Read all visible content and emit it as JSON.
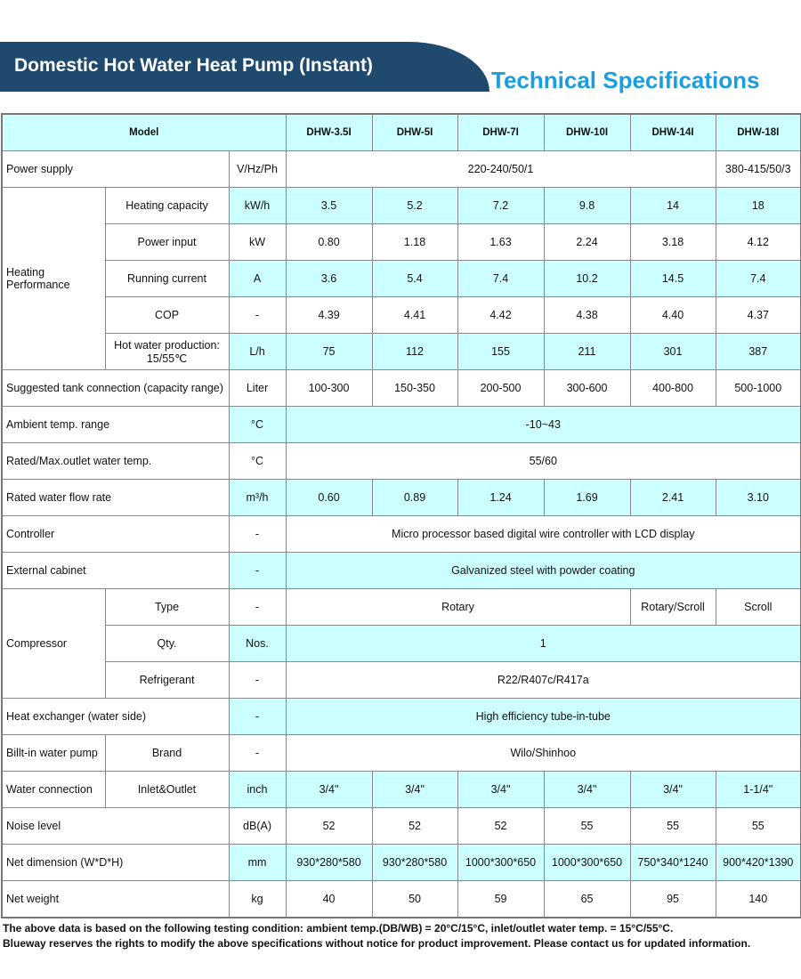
{
  "header": {
    "title": "Domestic Hot Water Heat Pump (Instant)",
    "subtitle": "Technical Specifications",
    "banner_color": "#1f4a6e",
    "accent_color": "#1a9ee0",
    "shade_color": "#ccffff"
  },
  "table": {
    "model_label": "Model",
    "models": [
      "DHW-3.5I",
      "DHW-5I",
      "DHW-7I",
      "DHW-10I",
      "DHW-14I",
      "DHW-18I"
    ],
    "power_supply": {
      "label": "Power supply",
      "unit": "V/Hz/Ph",
      "v1": "220-240/50/1",
      "v2": "380-415/50/3"
    },
    "heating": {
      "group": "Heating Performance",
      "rows": [
        {
          "label": "Heating capacity",
          "unit": "kW/h",
          "values": [
            "3.5",
            "5.2",
            "7.2",
            "9.8",
            "14",
            "18"
          ]
        },
        {
          "label": "Power input",
          "unit": "kW",
          "values": [
            "0.80",
            "1.18",
            "1.63",
            "2.24",
            "3.18",
            "4.12"
          ]
        },
        {
          "label": "Running current",
          "unit": "A",
          "values": [
            "3.6",
            "5.4",
            "7.4",
            "10.2",
            "14.5",
            "7.4"
          ]
        },
        {
          "label": "COP",
          "unit": "-",
          "values": [
            "4.39",
            "4.41",
            "4.42",
            "4.38",
            "4.40",
            "4.37"
          ]
        },
        {
          "label": "Hot water production: 15/55℃",
          "unit": "L/h",
          "values": [
            "75",
            "112",
            "155",
            "211",
            "301",
            "387"
          ]
        }
      ]
    },
    "tank": {
      "label": "Suggested tank connection (capacity range)",
      "unit": "Liter",
      "values": [
        "100-300",
        "150-350",
        "200-500",
        "300-600",
        "400-800",
        "500-1000"
      ]
    },
    "ambient": {
      "label": "Ambient temp. range",
      "unit": "°C",
      "value": "-10~43"
    },
    "outlet": {
      "label": "Rated/Max.outlet water temp.",
      "unit": "°C",
      "value": "55/60"
    },
    "flow": {
      "label": "Rated water flow rate",
      "unit": "m³/h",
      "values": [
        "0.60",
        "0.89",
        "1.24",
        "1.69",
        "2.41",
        "3.10"
      ]
    },
    "controller": {
      "label": "Controller",
      "unit": "-",
      "value": "Micro processor based digital wire controller with LCD display"
    },
    "cabinet": {
      "label": "External cabinet",
      "unit": "-",
      "value": "Galvanized steel with powder coating"
    },
    "compressor": {
      "group": "Compressor",
      "type": {
        "label": "Type",
        "unit": "-",
        "v1": "Rotary",
        "v2": "Rotary/Scroll",
        "v3": "Scroll"
      },
      "qty": {
        "label": "Qty.",
        "unit": "Nos.",
        "value": "1"
      },
      "refrigerant": {
        "label": "Refrigerant",
        "unit": "-",
        "value": "R22/R407c/R417a"
      }
    },
    "exchanger": {
      "label": "Heat exchanger (water side)",
      "unit": "-",
      "value": "High efficiency tube-in-tube"
    },
    "pump": {
      "label": "Billt-in water pump",
      "sub": "Brand",
      "unit": "-",
      "value": "Wilo/Shinhoo"
    },
    "water_conn": {
      "label": "Water connection",
      "sub": "Inlet&Outlet",
      "unit": "inch",
      "values": [
        "3/4\"",
        "3/4\"",
        "3/4\"",
        "3/4\"",
        "3/4\"",
        "1-1/4\""
      ]
    },
    "noise": {
      "label": "Noise level",
      "unit": "dB(A)",
      "values": [
        "52",
        "52",
        "52",
        "55",
        "55",
        "55"
      ]
    },
    "dimension": {
      "label": "Net dimension (W*D*H)",
      "unit": "mm",
      "values": [
        "930*280*580",
        "930*280*580",
        "1000*300*650",
        "1000*300*650",
        "750*340*1240",
        "900*420*1390"
      ]
    },
    "weight": {
      "label": "Net weight",
      "unit": "kg",
      "values": [
        "40",
        "50",
        "59",
        "65",
        "95",
        "140"
      ]
    }
  },
  "notes": [
    "The above data is based on the following testing condition: ambient temp.(DB/WB) = 20°C/15°C, inlet/outlet water temp. = 15°C/55°C.",
    "Blueway reserves the rights to modify the above specifications without notice for product improvement. Please contact us for updated information."
  ]
}
